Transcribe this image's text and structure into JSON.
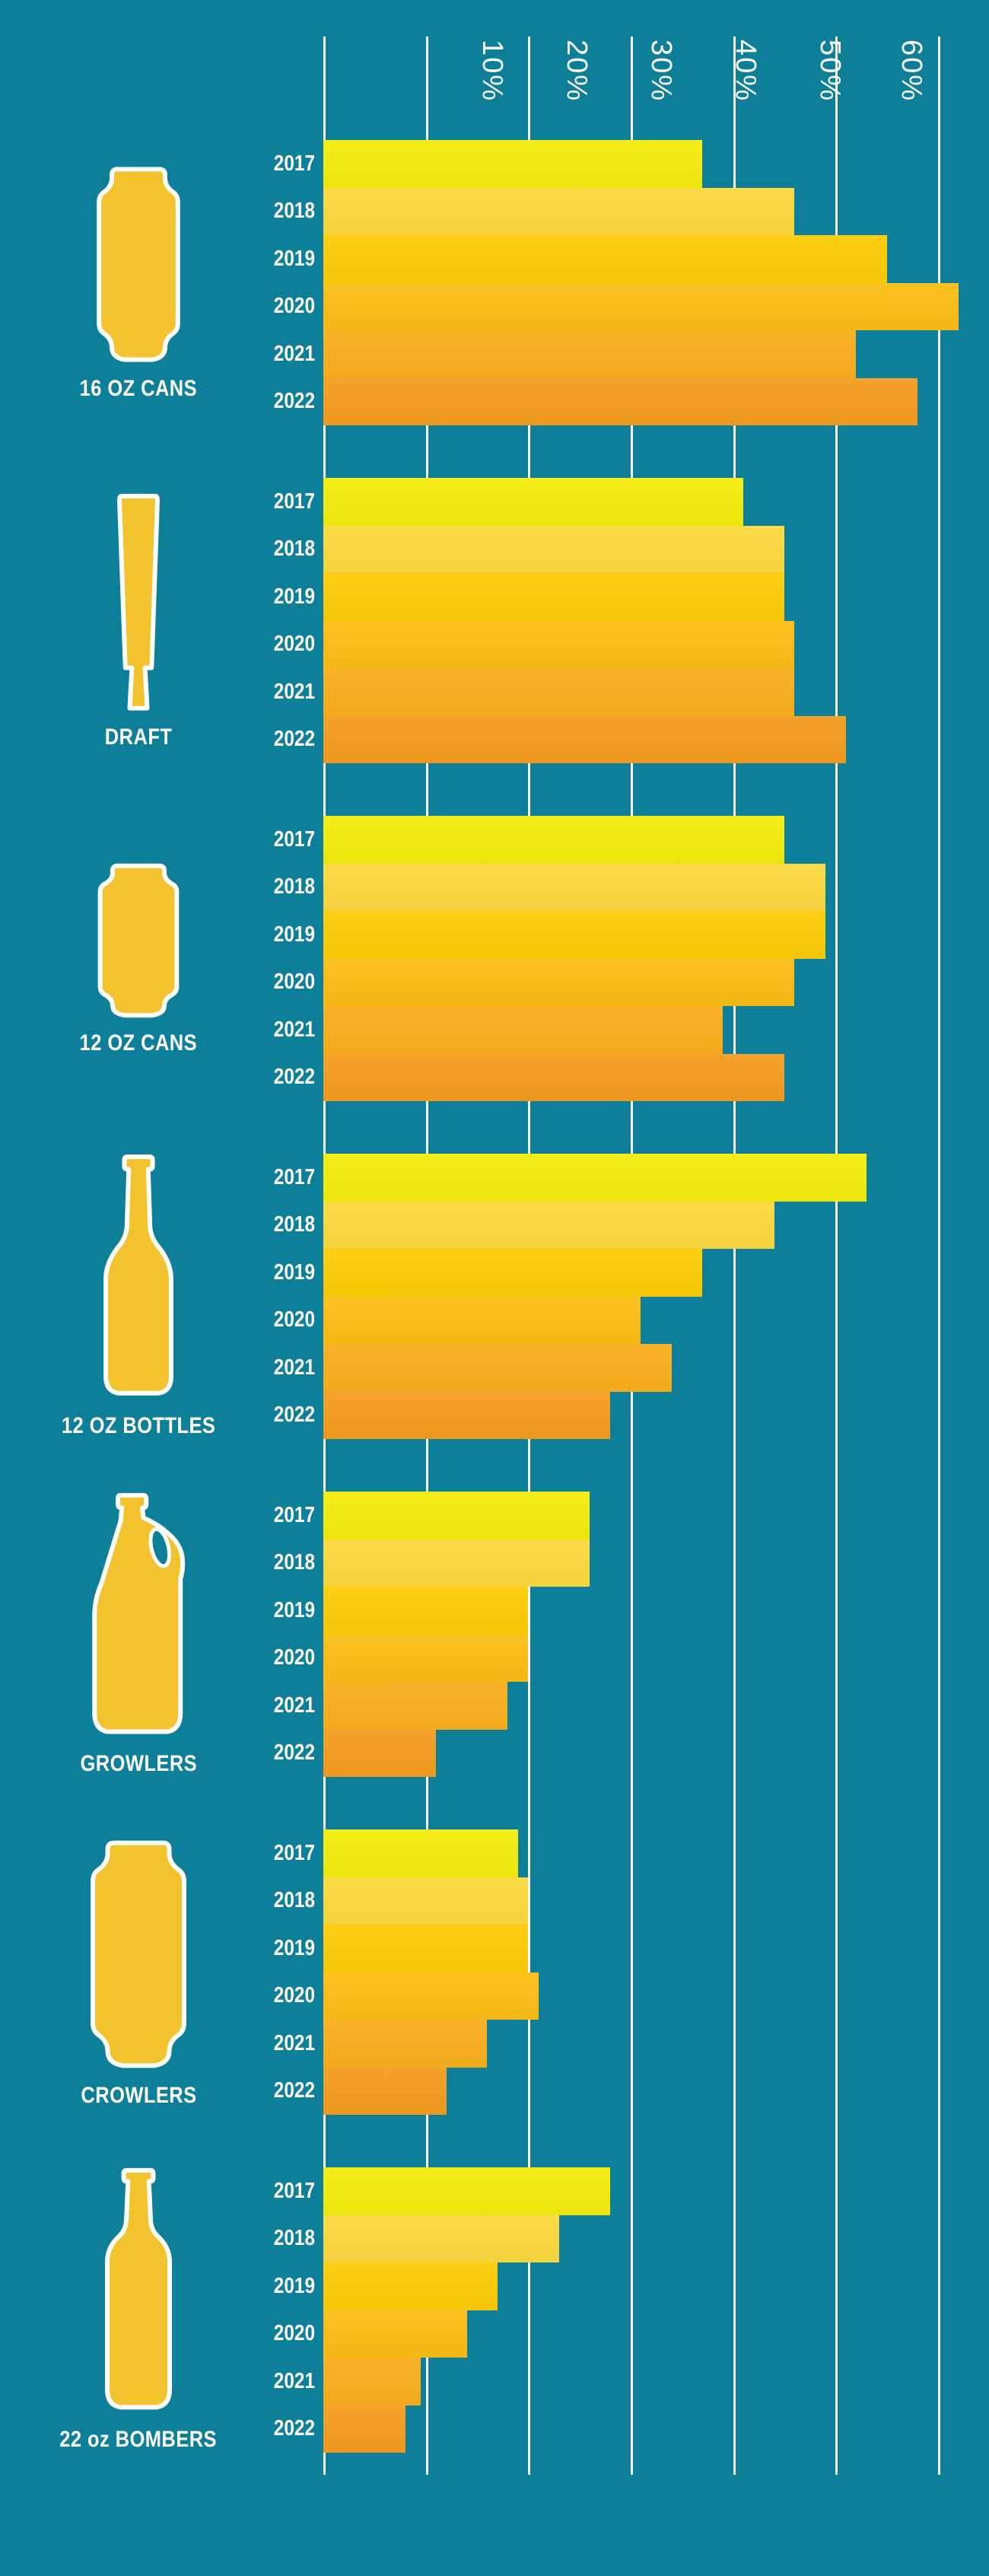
{
  "background_color": "#0D7F98",
  "gridline_color": "#FFFFFF",
  "text_color": "#FFFFFF",
  "icon_fill_color": "#F2C32E",
  "icon_outline_color": "#FFFFFF",
  "chart_data": {
    "type": "bar",
    "orientation": "horizontal",
    "unit": "%",
    "title": "",
    "x_axis": {
      "tick_labels": [
        "10%",
        "20%",
        "30%",
        "40%",
        "50%",
        "60%"
      ],
      "min": 0,
      "max": 60,
      "grid": true,
      "tick_label_rotation_deg": 90,
      "tick_label_position": "top"
    },
    "years": [
      "2017",
      "2018",
      "2019",
      "2020",
      "2021",
      "2022"
    ],
    "year_colors": [
      "#F4EC0D",
      "#FBD93F",
      "#FCCC06",
      "#FBBE16",
      "#F9AF1E",
      "#F49D20"
    ],
    "groups": [
      {
        "label": "16 OZ CANS",
        "icon": "pint-can-icon",
        "values": [
          37,
          46,
          55,
          62,
          52,
          58
        ]
      },
      {
        "label": "DRAFT",
        "icon": "tap-handle-icon",
        "values": [
          41,
          45,
          45,
          46,
          46,
          51
        ]
      },
      {
        "label": "12 OZ CANS",
        "icon": "twelve-oz-can-icon",
        "values": [
          45,
          49,
          49,
          46,
          39,
          45
        ]
      },
      {
        "label": "12 OZ BOTTLES",
        "icon": "twelve-oz-bottle-icon",
        "values": [
          53,
          44,
          37,
          31,
          34,
          28
        ]
      },
      {
        "label": "GROWLERS",
        "icon": "growler-icon",
        "values": [
          26,
          26,
          20,
          20,
          18,
          11
        ]
      },
      {
        "label": "CROWLERS",
        "icon": "crowler-can-icon",
        "values": [
          19,
          20,
          20,
          21,
          16,
          12
        ]
      },
      {
        "label": "22 oz BOMBERS",
        "icon": "bomber-bottle-icon",
        "values": [
          28,
          23,
          17,
          14,
          9.5,
          8
        ]
      }
    ],
    "legend": null
  }
}
